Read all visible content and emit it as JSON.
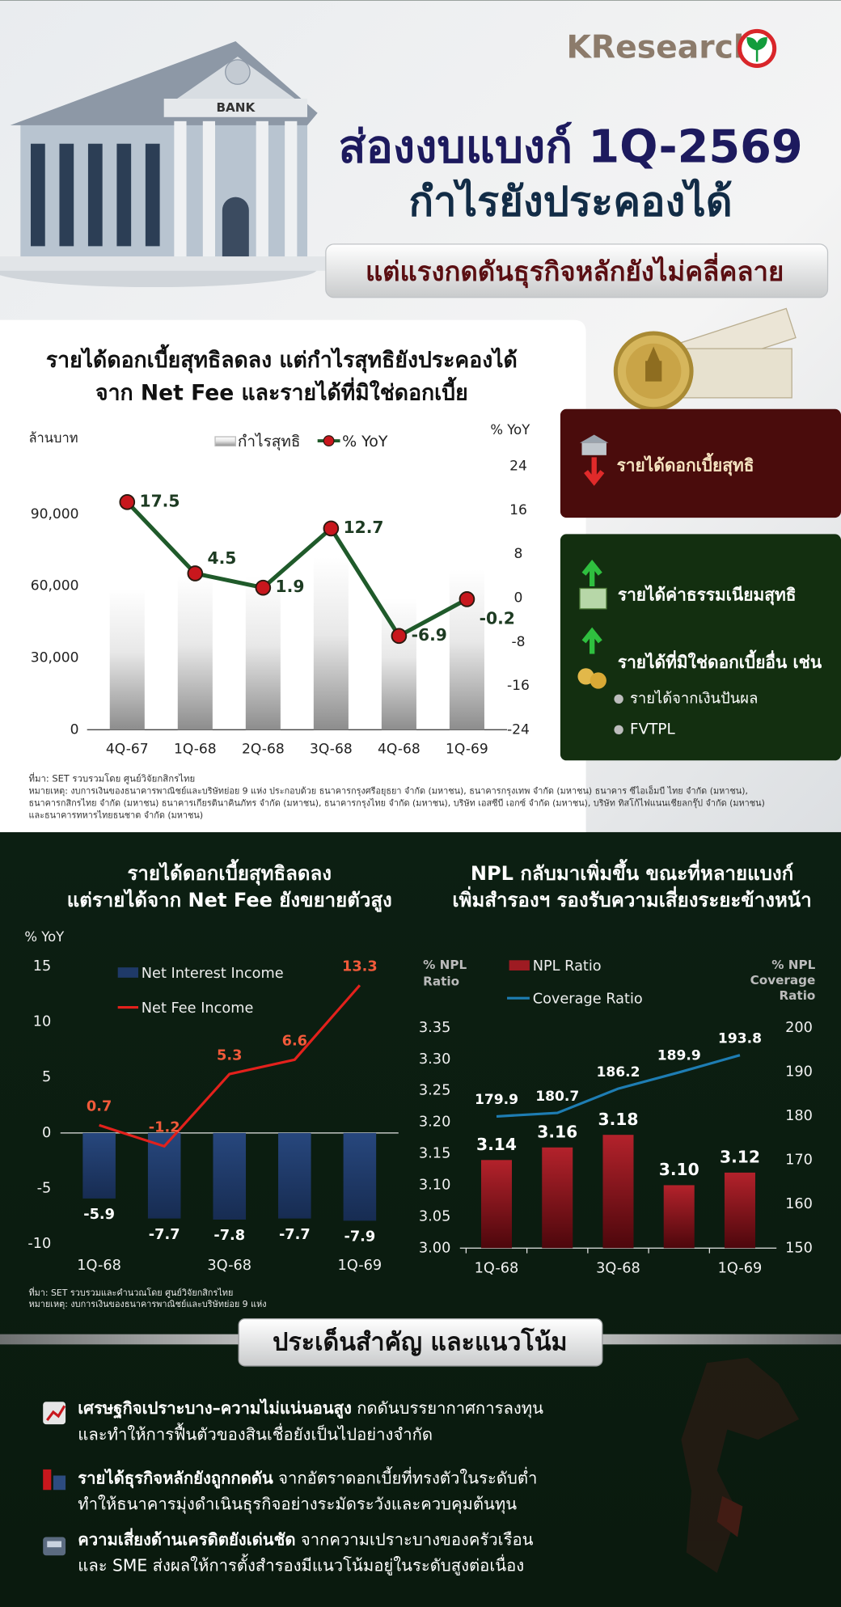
{
  "header": {
    "brand": "KResearch",
    "illustration_label": "BANK",
    "title_lines": [
      "ส่องงบแบงก์ 1Q-2569",
      "กำไรยังประคองได้"
    ],
    "subtitle": "แต่แรงกดดันธุรกิจหลักยังไม่คลี่คลาย"
  },
  "sidebar": {
    "down_item": "รายได้ดอกเบี้ยสุทธิ",
    "up_items": [
      "รายได้ค่าธรรมเนียมสุทธิ",
      "รายได้ที่มิใช่ดอกเบี้ยอื่น เช่น"
    ],
    "bullets": [
      "รายได้จากเงินปันผล",
      "FVTPL"
    ]
  },
  "notes_top": {
    "source": "ที่มา: SET รวบรวมโดย ศูนย์วิจัยกสิกรไทย",
    "note_lines": [
      "หมายเหตุ: งบการเงินของธนาคารพาณิชย์และบริษัทย่อย 9 แห่ง ประกอบด้วย ธนาคารกรุงศรีอยุธยา จำกัด (มหาชน), ธนาคารกรุงเทพ จำกัด (มหาชน) ธนาคาร ซีไอเอ็มบี ไทย จำกัด (มหาชน),",
      "ธนาคารกสิกรไทย จำกัด (มหาชน) ธนาคารเกียรตินาคินภัทร จำกัด (มหาชน), ธนาคารกรุงไทย จำกัด (มหาชน), บริษัท เอสซีบี เอกซ์ จำกัด (มหาชน), บริษัท ทิสโก้ไฟแนนเชียลกรุ๊ป จำกัด (มหาชน)",
      "และธนาคารทหารไทยธนชาต จำกัด (มหาชน)"
    ]
  },
  "notes_bottom": {
    "source": "ที่มา: SET รวบรวมและคำนวณโดย ศูนย์วิจัยกสิกรไทย",
    "note": "หมายเหตุ: งบการเงินของธนาคารพาณิชย์และบริษัทย่อย 9 แห่ง"
  },
  "key_section": {
    "title": "ประเด็นสำคัญ และแนวโน้ม",
    "points": [
      {
        "lead": "เศรษฐกิจเปราะบาง–ความไม่แน่นอนสูง",
        "rest": "กดดันบรรยากาศการลงทุน",
        "line2": "และทำให้การฟื้นตัวของสินเชื่อยังเป็นไปอย่างจำกัด"
      },
      {
        "lead": "รายได้ธุรกิจหลักยังถูกกดดัน",
        "rest": "จากอัตราดอกเบี้ยที่ทรงตัวในระดับต่ำ",
        "line2": "ทำให้ธนาคารมุ่งดำเนินธุรกิจอย่างระมัดระวังและควบคุมต้นทุน"
      },
      {
        "lead": "ความเสี่ยงด้านเครดิตยังเด่นชัด",
        "rest": "จากความเปราะบางของครัวเรือน",
        "line2": "และ SME ส่งผลให้การตั้งสำรองมีแนวโน้มอยู่ในระดับสูงต่อเนื่อง"
      }
    ]
  },
  "chart_data": [
    {
      "type": "bar_line",
      "title_lines": [
        "รายได้ดอกเบี้ยสุทธิลดลง แต่กำไรสุทธิยังประคองได้",
        "จาก Net Fee และรายได้ที่มิใช่ดอกเบี้ย"
      ],
      "y_label": "ล้านบาท",
      "y2_label": "% YoY",
      "categories": [
        "4Q-67",
        "1Q-68",
        "2Q-68",
        "3Q-68",
        "4Q-68",
        "1Q-69"
      ],
      "series": [
        {
          "name": "กำไรสุทธิ",
          "type": "bar",
          "color": "#c9c9c9",
          "values": [
            59000,
            64300,
            64000,
            72000,
            54900,
            66900
          ]
        },
        {
          "name": "% YoY",
          "type": "line",
          "axis": "y2",
          "color": "#1f5a2a",
          "marker_color": "#c8171d",
          "values": [
            17.5,
            4.5,
            1.9,
            12.7,
            -6.9,
            -0.2
          ]
        }
      ],
      "ylim": [
        0,
        110000
      ],
      "yticks": [
        0,
        {
          "value": 30000,
          "label": "30,000"
        },
        {
          "value": 60000,
          "label": "60,000"
        },
        {
          "value": 90000,
          "label": "90,000"
        }
      ],
      "y2lim": [
        -24,
        24
      ],
      "y2ticks": [
        -24,
        -16,
        -8,
        0,
        8,
        16,
        24
      ],
      "grid": false
    },
    {
      "type": "bar_line",
      "title_lines": [
        "รายได้ดอกเบี้ยสุทธิลดลง",
        "แต่รายได้จาก Net Fee ยังขยายตัวสูง"
      ],
      "y_label": "% YoY",
      "categories": [
        "1Q-68",
        null,
        "3Q-68",
        null,
        "1Q-69"
      ],
      "series": [
        {
          "name": "Net Interest Income",
          "type": "bar",
          "color": "#1f3a68",
          "values": [
            -5.9,
            -7.7,
            -7.8,
            -7.7,
            -7.9
          ]
        },
        {
          "name": "Net Fee Income",
          "type": "line",
          "color": "#e3211c",
          "values": [
            0.7,
            -1.2,
            5.3,
            6.6,
            13.3
          ]
        }
      ],
      "ylim": [
        -10,
        15
      ],
      "yticks": [
        -10,
        -5,
        0,
        5,
        10,
        15
      ],
      "grid": false
    },
    {
      "type": "bar_line",
      "title_lines": [
        "NPL กลับมาเพิ่มขึ้น ขณะที่หลายแบงก์",
        "เพิ่มสำรองฯ รองรับความเสี่ยงระยะข้างหน้า"
      ],
      "y_label_lines": [
        "% NPL",
        "Ratio"
      ],
      "y2_label_lines": [
        "% NPL",
        "Coverage",
        "Ratio"
      ],
      "categories": [
        "1Q-68",
        null,
        "3Q-68",
        null,
        "1Q-69"
      ],
      "series": [
        {
          "name": "NPL Ratio",
          "type": "bar",
          "color": "#9e1b22",
          "values": [
            3.14,
            3.16,
            3.18,
            3.1,
            3.12
          ],
          "value_labels": [
            "3.14",
            "3.16",
            "3.18",
            "3.10",
            "3.12"
          ]
        },
        {
          "name": "Coverage Ratio",
          "type": "line",
          "axis": "y2",
          "color": "#1e7db3",
          "values": [
            179.9,
            180.7,
            186.2,
            189.9,
            193.8
          ]
        }
      ],
      "ylim": [
        3,
        3.35
      ],
      "yticks": [
        {
          "value": 3,
          "label": "3.00"
        },
        3.05,
        {
          "value": 3.1,
          "label": "3.10"
        },
        3.15,
        {
          "value": 3.2,
          "label": "3.20"
        },
        3.25,
        {
          "value": 3.3,
          "label": "3.30"
        },
        3.35
      ],
      "y2lim": [
        150,
        200
      ],
      "y2ticks": [
        150,
        160,
        170,
        180,
        190,
        200
      ],
      "grid": false
    }
  ]
}
